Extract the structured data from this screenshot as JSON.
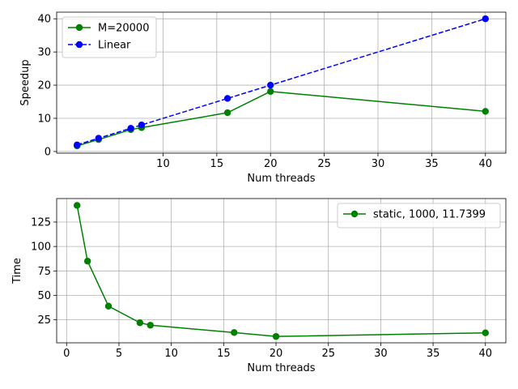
{
  "chart_data": [
    {
      "type": "line",
      "xlabel": "Num threads",
      "ylabel": "Speedup",
      "xlim": [
        0.1,
        41.9
      ],
      "ylim": [
        -0.5,
        42
      ],
      "xticks": [
        10,
        15,
        20,
        25,
        30,
        35,
        40
      ],
      "yticks": [
        0,
        10,
        20,
        30,
        40
      ],
      "grid": true,
      "legend_position": "top-left",
      "series": [
        {
          "name": "M=20000",
          "color": "#008000",
          "line_style": "solid",
          "marker": "circle",
          "x": [
            2,
            4,
            7,
            8,
            16,
            20,
            40
          ],
          "y": [
            1.7,
            3.6,
            6.6,
            7.2,
            11.7,
            18.1,
            12.1
          ]
        },
        {
          "name": "Linear",
          "color": "#0000ff",
          "line_style": "dashed",
          "marker": "circle",
          "x": [
            2,
            4,
            7,
            8,
            16,
            20,
            40
          ],
          "y": [
            2,
            4,
            7,
            8,
            16,
            20,
            40
          ]
        }
      ]
    },
    {
      "type": "line",
      "xlabel": "Num threads",
      "ylabel": "Time",
      "xlim": [
        -0.95,
        41.95
      ],
      "ylim": [
        1.5,
        149
      ],
      "xticks": [
        0,
        5,
        10,
        15,
        20,
        25,
        30,
        35,
        40
      ],
      "yticks": [
        25,
        50,
        75,
        100,
        125
      ],
      "grid": true,
      "legend_position": "top-right",
      "series": [
        {
          "name": "static, 1000, 11.7399",
          "color": "#008000",
          "line_style": "solid",
          "marker": "circle",
          "x": [
            1,
            2,
            4,
            7,
            8,
            16,
            20,
            40
          ],
          "y": [
            142,
            85,
            39,
            22,
            19.5,
            12,
            8,
            11.7
          ]
        }
      ]
    }
  ]
}
